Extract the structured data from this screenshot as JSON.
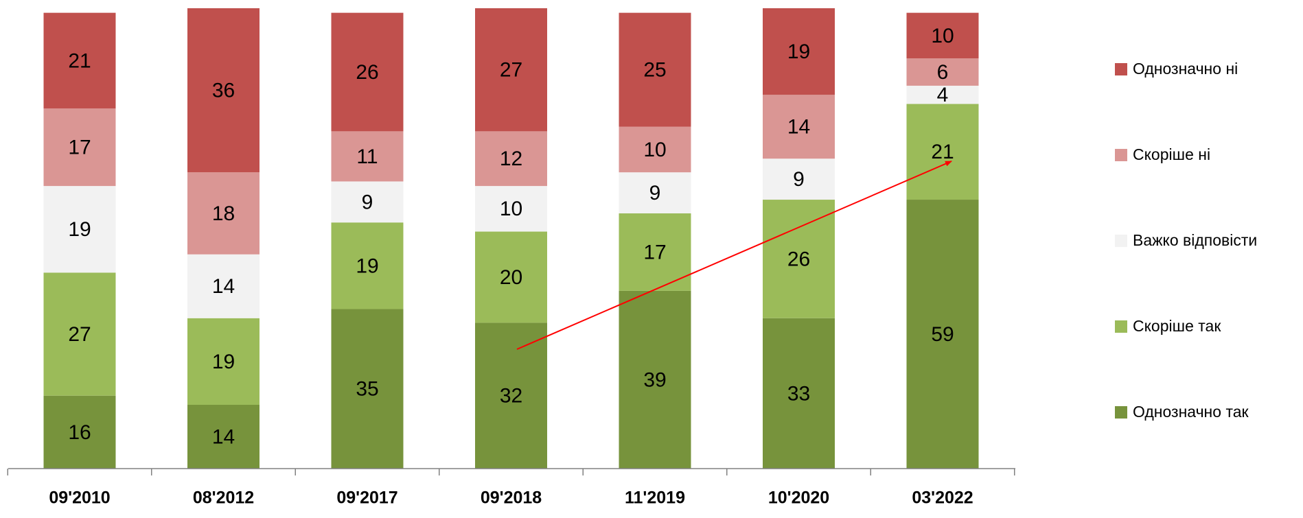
{
  "chart_data": {
    "type": "stacked_bar",
    "categories": [
      "09'2010",
      "08'2012",
      "09'2017",
      "09'2018",
      "11'2019",
      "10'2020",
      "03'2022"
    ],
    "series": [
      {
        "name": "Однозначно так",
        "color": "#77933c",
        "values": [
          16,
          14,
          35,
          32,
          39,
          33,
          59
        ]
      },
      {
        "name": "Скоріше так",
        "color": "#9bbb59",
        "values": [
          27,
          19,
          19,
          20,
          17,
          26,
          21
        ]
      },
      {
        "name": "Важко відповісти",
        "color": "#f2f2f2",
        "values": [
          19,
          14,
          9,
          10,
          9,
          9,
          4
        ]
      },
      {
        "name": "Скоріше ні",
        "color": "#da9694",
        "values": [
          17,
          18,
          11,
          12,
          10,
          14,
          6
        ]
      },
      {
        "name": "Однозначно ні",
        "color": "#c0504d",
        "values": [
          21,
          36,
          26,
          27,
          25,
          19,
          10
        ]
      }
    ],
    "legend": "right"
  }
}
